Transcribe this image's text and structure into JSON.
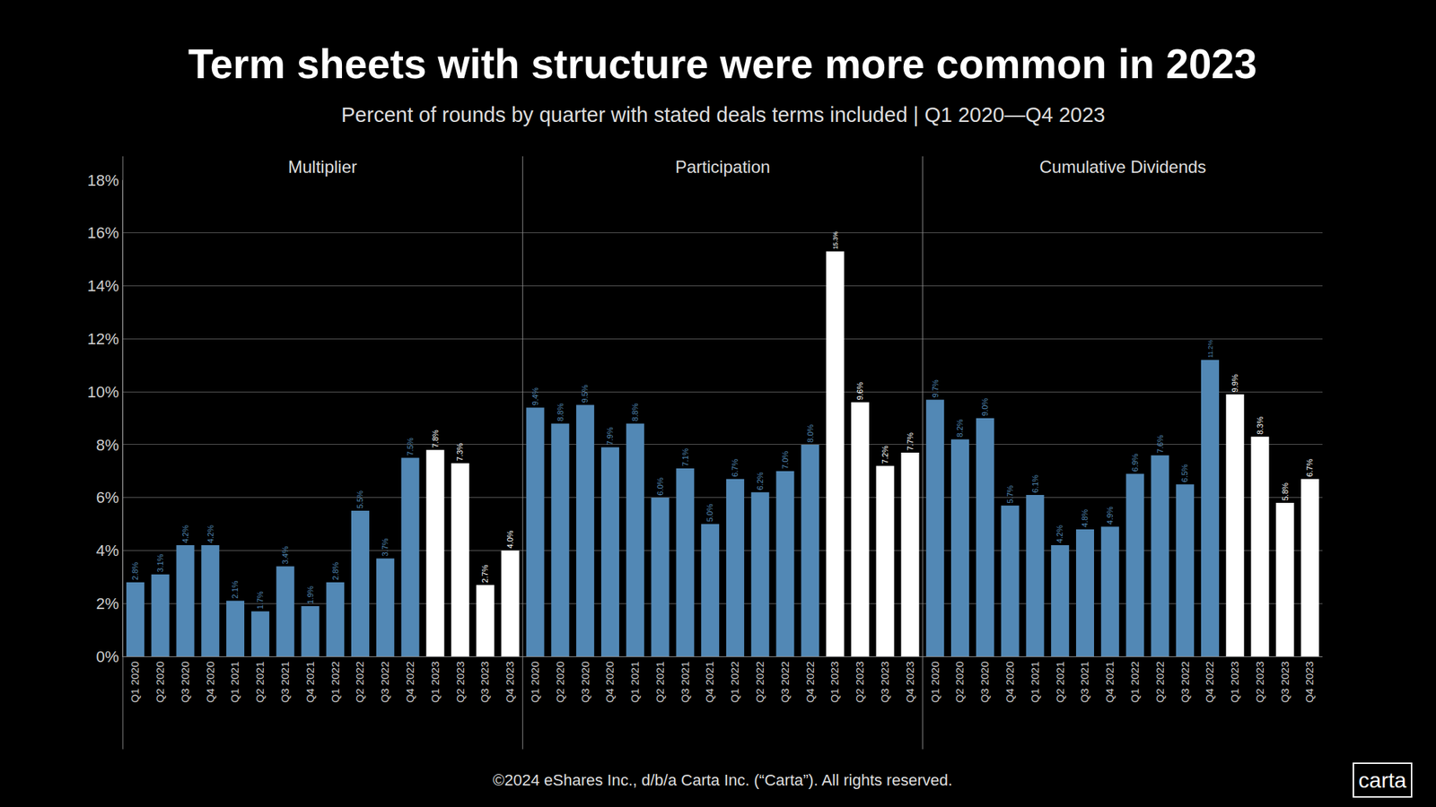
{
  "title": "Term sheets with structure were more common in 2023",
  "subtitle": "Percent of rounds by quarter with stated deals terms included | Q1 2020—Q4 2023",
  "footer": "©2024 eShares Inc., d/b/a Carta Inc. (“Carta”). All rights reserved.",
  "logo": "carta",
  "chart_data": [
    {
      "type": "bar",
      "title": "Multiplier",
      "categories": [
        "Q1 2020",
        "Q2 2020",
        "Q3 2020",
        "Q4 2020",
        "Q1 2021",
        "Q2 2021",
        "Q3 2021",
        "Q4 2021",
        "Q1 2022",
        "Q2 2022",
        "Q3 2022",
        "Q4 2022",
        "Q1 2023",
        "Q2 2023",
        "Q3 2023",
        "Q4 2023"
      ],
      "values": [
        2.8,
        3.1,
        4.2,
        4.2,
        2.1,
        1.7,
        3.4,
        1.9,
        2.8,
        5.5,
        3.7,
        7.5,
        7.8,
        7.3,
        2.7,
        4.0
      ],
      "value_labels": [
        "2.8%",
        "3.1%",
        "4.2%",
        "4.2%",
        "2.1%",
        "1.7%",
        "3.4%",
        "1.9%",
        "2.8%",
        "5.5%",
        "3.7%",
        "7.5%",
        "7.8%",
        "7.3%",
        "2.7%",
        "4.0%"
      ],
      "colors": [
        "#5288b5",
        "#5288b5",
        "#5288b5",
        "#5288b5",
        "#5288b5",
        "#5288b5",
        "#5288b5",
        "#5288b5",
        "#5288b5",
        "#5288b5",
        "#5288b5",
        "#5288b5",
        "#ffffff",
        "#ffffff",
        "#ffffff",
        "#ffffff"
      ],
      "ylim": [
        0,
        18
      ],
      "yticks": [
        {
          "value": 0,
          "label": "0%"
        },
        {
          "value": 2,
          "label": "2%"
        },
        {
          "value": 4,
          "label": "4%"
        },
        {
          "value": 6,
          "label": "6%"
        },
        {
          "value": 8,
          "label": "8%"
        },
        {
          "value": 10,
          "label": "10%"
        },
        {
          "value": 12,
          "label": "12%"
        },
        {
          "value": 14,
          "label": "14%"
        },
        {
          "value": 16,
          "label": "16%"
        },
        {
          "value": 18,
          "label": "18%"
        }
      ],
      "grid": true,
      "data_labels": true
    },
    {
      "type": "bar",
      "title": "Participation",
      "categories": [
        "Q1 2020",
        "Q2 2020",
        "Q3 2020",
        "Q4 2020",
        "Q1 2021",
        "Q2 2021",
        "Q3 2021",
        "Q4 2021",
        "Q1 2022",
        "Q2 2022",
        "Q3 2022",
        "Q4 2022",
        "Q1 2023",
        "Q2 2023",
        "Q3 2023",
        "Q4 2023"
      ],
      "values": [
        9.4,
        8.8,
        9.5,
        7.9,
        8.8,
        6.0,
        7.1,
        5.0,
        6.7,
        6.2,
        7.0,
        8.0,
        15.3,
        9.6,
        7.2,
        7.7
      ],
      "value_labels": [
        "9.4%",
        "8.8%",
        "9.5%",
        "7.9%",
        "8.8%",
        "6.0%",
        "7.1%",
        "5.0%",
        "6.7%",
        "6.2%",
        "7.0%",
        "8.0%",
        "15.3%",
        "9.6%",
        "7.2%",
        "7.7%"
      ],
      "colors": [
        "#5288b5",
        "#5288b5",
        "#5288b5",
        "#5288b5",
        "#5288b5",
        "#5288b5",
        "#5288b5",
        "#5288b5",
        "#5288b5",
        "#5288b5",
        "#5288b5",
        "#5288b5",
        "#ffffff",
        "#ffffff",
        "#ffffff",
        "#ffffff"
      ],
      "ylim": [
        0,
        18
      ],
      "yticks": [
        {
          "value": 0,
          "label": "0%"
        },
        {
          "value": 2,
          "label": "2%"
        },
        {
          "value": 4,
          "label": "4%"
        },
        {
          "value": 6,
          "label": "6%"
        },
        {
          "value": 8,
          "label": "8%"
        },
        {
          "value": 10,
          "label": "10%"
        },
        {
          "value": 12,
          "label": "12%"
        },
        {
          "value": 14,
          "label": "14%"
        },
        {
          "value": 16,
          "label": "16%"
        },
        {
          "value": 18,
          "label": "18%"
        }
      ],
      "grid": true,
      "data_labels": true
    },
    {
      "type": "bar",
      "title": "Cumulative Dividends",
      "categories": [
        "Q1 2020",
        "Q2 2020",
        "Q3 2020",
        "Q4 2020",
        "Q1 2021",
        "Q2 2021",
        "Q3 2021",
        "Q4 2021",
        "Q1 2022",
        "Q2 2022",
        "Q3 2022",
        "Q4 2022",
        "Q1 2023",
        "Q2 2023",
        "Q3 2023",
        "Q4 2023"
      ],
      "values": [
        9.7,
        8.2,
        9.0,
        5.7,
        6.1,
        4.2,
        4.8,
        4.9,
        6.9,
        7.6,
        6.5,
        11.2,
        9.9,
        8.3,
        5.8,
        6.7
      ],
      "value_labels": [
        "9.7%",
        "8.2%",
        "9.0%",
        "5.7%",
        "6.1%",
        "4.2%",
        "4.8%",
        "4.9%",
        "6.9%",
        "7.6%",
        "6.5%",
        "11.2%",
        "9.9%",
        "8.3%",
        "5.8%",
        "6.7%"
      ],
      "colors": [
        "#5288b5",
        "#5288b5",
        "#5288b5",
        "#5288b5",
        "#5288b5",
        "#5288b5",
        "#5288b5",
        "#5288b5",
        "#5288b5",
        "#5288b5",
        "#5288b5",
        "#5288b5",
        "#ffffff",
        "#ffffff",
        "#ffffff",
        "#ffffff"
      ],
      "ylim": [
        0,
        18
      ],
      "yticks": [
        {
          "value": 0,
          "label": "0%"
        },
        {
          "value": 2,
          "label": "2%"
        },
        {
          "value": 4,
          "label": "4%"
        },
        {
          "value": 6,
          "label": "6%"
        },
        {
          "value": 8,
          "label": "8%"
        },
        {
          "value": 10,
          "label": "10%"
        },
        {
          "value": 12,
          "label": "12%"
        },
        {
          "value": 14,
          "label": "14%"
        },
        {
          "value": 16,
          "label": "16%"
        },
        {
          "value": 18,
          "label": "18%"
        }
      ],
      "grid": true,
      "data_labels": true
    }
  ]
}
